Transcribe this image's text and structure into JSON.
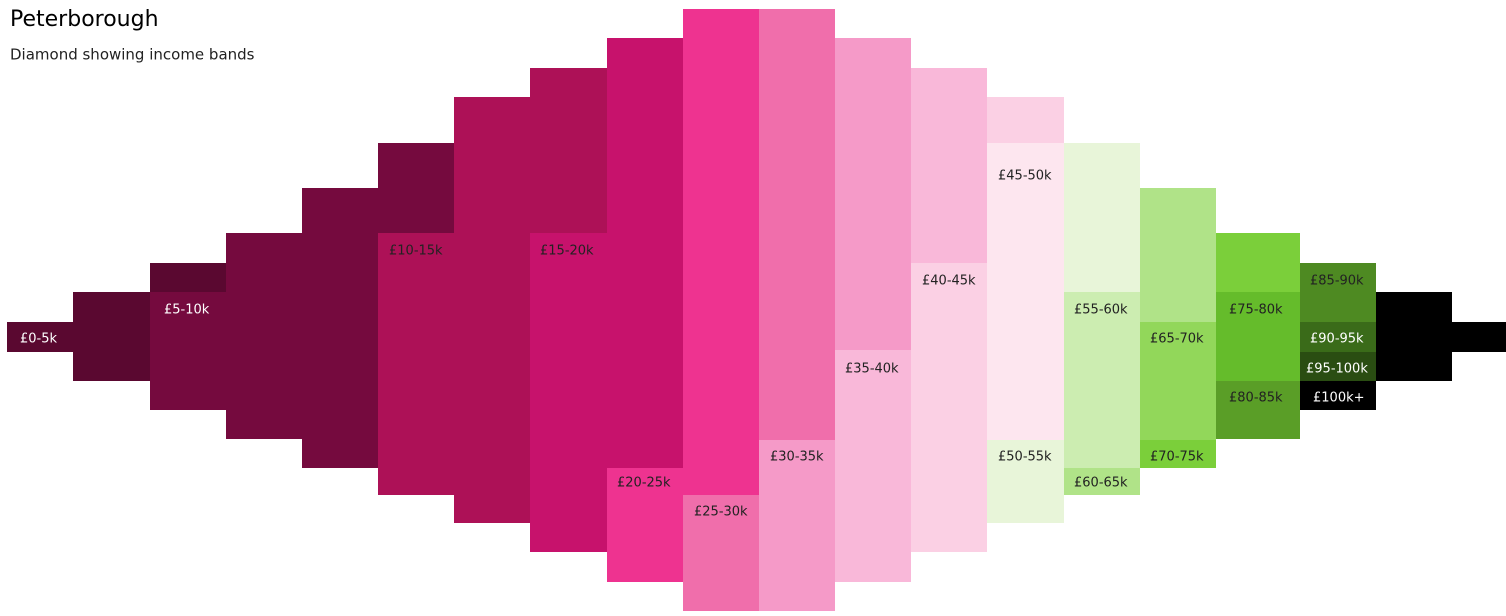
{
  "chart_data": {
    "type": "diamond",
    "title": "Peterborough",
    "subtitle": "Diamond showing income bands",
    "categories": [
      "£0-5k",
      "£5-10k",
      "£10-15k",
      "£15-20k",
      "£20-25k",
      "£25-30k",
      "£30-35k",
      "£35-40k",
      "£40-45k",
      "£45-50k",
      "£50-55k",
      "£55-60k",
      "£60-65k",
      "£65-70k",
      "£70-75k",
      "£75-80k",
      "£80-85k",
      "£85-90k",
      "£90-95k",
      "£95-100k",
      "£100k+"
    ],
    "colors": [
      "#5a0830",
      "#750a3e",
      "#ad1157",
      "#c7126c",
      "#ee3390",
      "#f06eab",
      "#f59ac8",
      "#f9b8d9",
      "#fbd0e4",
      "#fde6ef",
      "#e8f5d9",
      "#ccedb1",
      "#b0e388",
      "#92d75a",
      "#7bcf3a",
      "#65bc2b",
      "#5a9e27",
      "#4e8a22",
      "#3a6b19",
      "#2a4d12",
      "#000000"
    ]
  }
}
